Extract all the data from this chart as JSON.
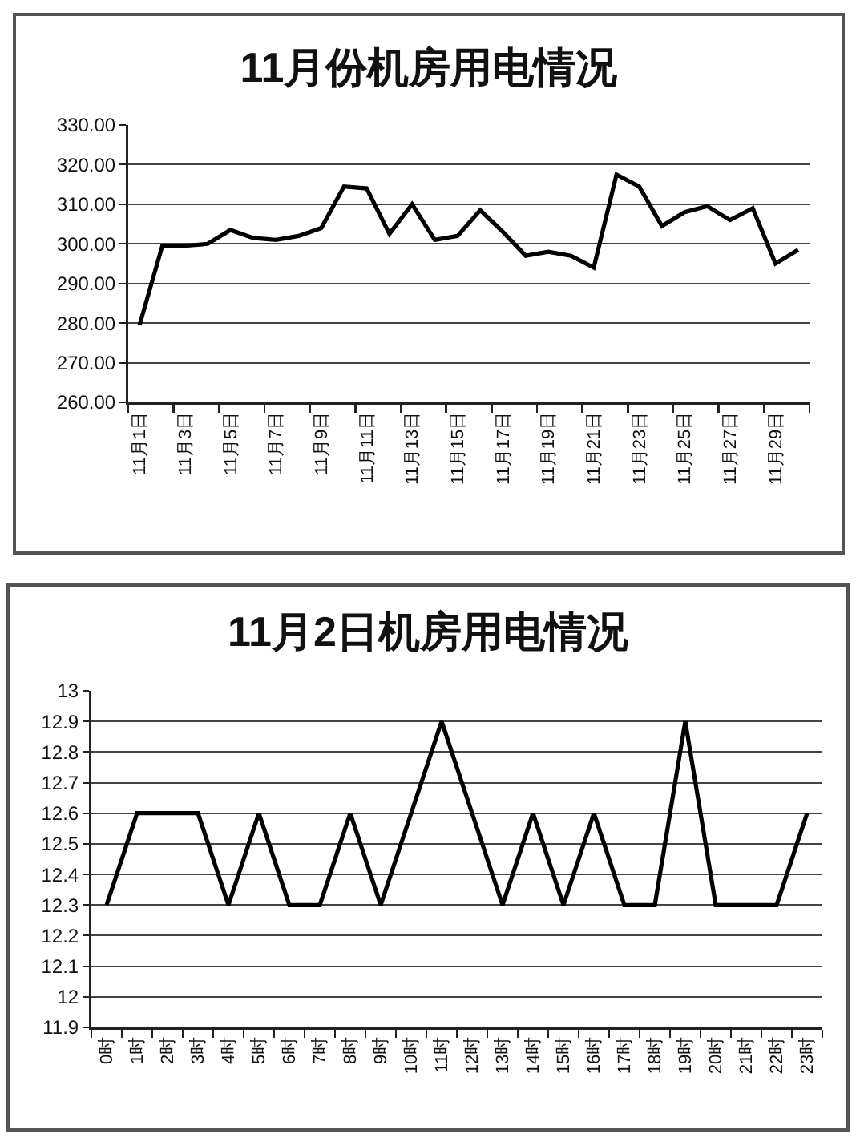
{
  "chart_data": [
    {
      "type": "line",
      "title": "11月份机房用电情况",
      "categories": [
        "11月1日",
        null,
        "11月3日",
        null,
        "11月5日",
        null,
        "11月7日",
        null,
        "11月9日",
        null,
        "11月11日",
        null,
        "11月13日",
        null,
        "11月15日",
        null,
        "11月17日",
        null,
        "11月19日",
        null,
        "11月21日",
        null,
        "11月23日",
        null,
        "11月25日",
        null,
        "11月27日",
        null,
        "11月29日",
        null
      ],
      "values": [
        279.5,
        299.5,
        299.5,
        300,
        303.5,
        301.5,
        301,
        302,
        304,
        314.5,
        314,
        302.5,
        310,
        301,
        302,
        308.5,
        303,
        297,
        298,
        297,
        294,
        317.5,
        314.5,
        304.5,
        308,
        309.5,
        306,
        309,
        295,
        298.5
      ],
      "color": "#000000",
      "ylim": [
        260,
        330
      ],
      "yticks": [
        {
          "value": 260,
          "label": "260.00"
        },
        {
          "value": 270,
          "label": "270.00"
        },
        {
          "value": 280,
          "label": "280.00"
        },
        {
          "value": 290,
          "label": "290.00"
        },
        {
          "value": 300,
          "label": "300.00"
        },
        {
          "value": 310,
          "label": "310.00"
        },
        {
          "value": 320,
          "label": "320.00"
        },
        {
          "value": 330,
          "label": "330.00"
        }
      ],
      "grid": "y"
    },
    {
      "type": "line",
      "title": "11月2日机房用电情况",
      "categories": [
        "0时",
        "1时",
        "2时",
        "3时",
        "4时",
        "5时",
        "6时",
        "7时",
        "8时",
        "9时",
        "10时",
        "11时",
        "12时",
        "13时",
        "14时",
        "15时",
        "16时",
        "17时",
        "18时",
        "19时",
        "20时",
        "21时",
        "22时",
        "23时"
      ],
      "values": [
        12.3,
        12.6,
        12.6,
        12.6,
        12.3,
        12.6,
        12.3,
        12.3,
        12.6,
        12.3,
        12.6,
        12.9,
        12.6,
        12.3,
        12.6,
        12.3,
        12.6,
        12.3,
        12.3,
        12.9,
        12.3,
        12.3,
        12.3,
        12.6
      ],
      "color": "#000000",
      "ylim": [
        11.9,
        13
      ],
      "yticks": [
        11.9,
        12,
        12.1,
        12.2,
        12.3,
        12.4,
        12.5,
        12.6,
        12.7,
        12.8,
        12.9,
        13
      ],
      "grid": "y"
    }
  ]
}
